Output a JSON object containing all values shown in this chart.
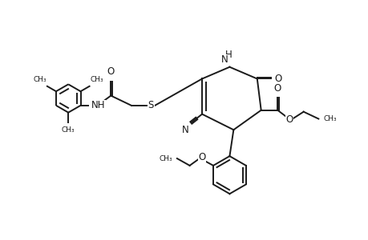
{
  "bg_color": "#ffffff",
  "line_color": "#1a1a1a",
  "line_width": 1.4,
  "font_size": 8.5,
  "figsize": [
    4.6,
    3.0
  ],
  "dpi": 100,
  "xlim": [
    0,
    9.2
  ],
  "ylim": [
    0,
    6.0
  ]
}
